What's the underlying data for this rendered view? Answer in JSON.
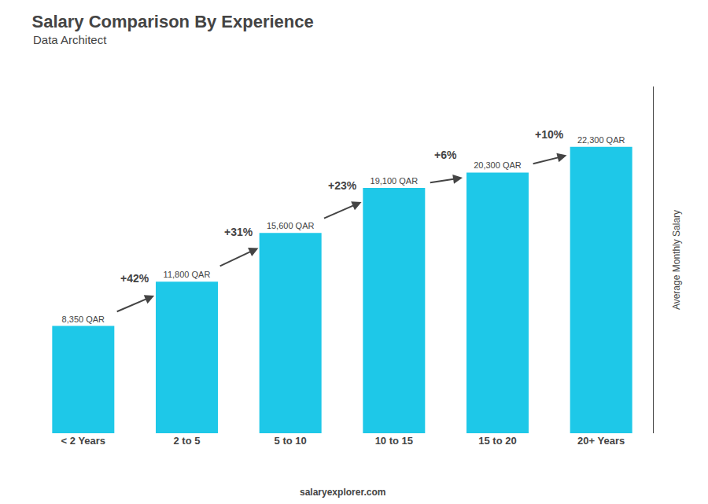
{
  "chart_data": {
    "type": "bar",
    "title": "Salary Comparison By Experience",
    "subtitle": "Data Architect",
    "categories": [
      "< 2 Years",
      "2 to 5",
      "5 to 10",
      "10 to 15",
      "15 to 20",
      "20+ Years"
    ],
    "values": [
      8350,
      11800,
      15600,
      19100,
      20300,
      22300
    ],
    "value_labels": [
      "8,350 QAR",
      "11,800 QAR",
      "15,600 QAR",
      "19,100 QAR",
      "20,300 QAR",
      "22,300 QAR"
    ],
    "data_labels": true,
    "color": "#1ec8e8",
    "ylabel": "Average Monthly Salary",
    "ylim": [
      0,
      27000
    ],
    "grid": false,
    "tick_labels": "x",
    "change_labels": [
      "+42%",
      "+31%",
      "+23%",
      "+6%",
      "+10%"
    ],
    "footer": "salaryexplorer.com"
  }
}
